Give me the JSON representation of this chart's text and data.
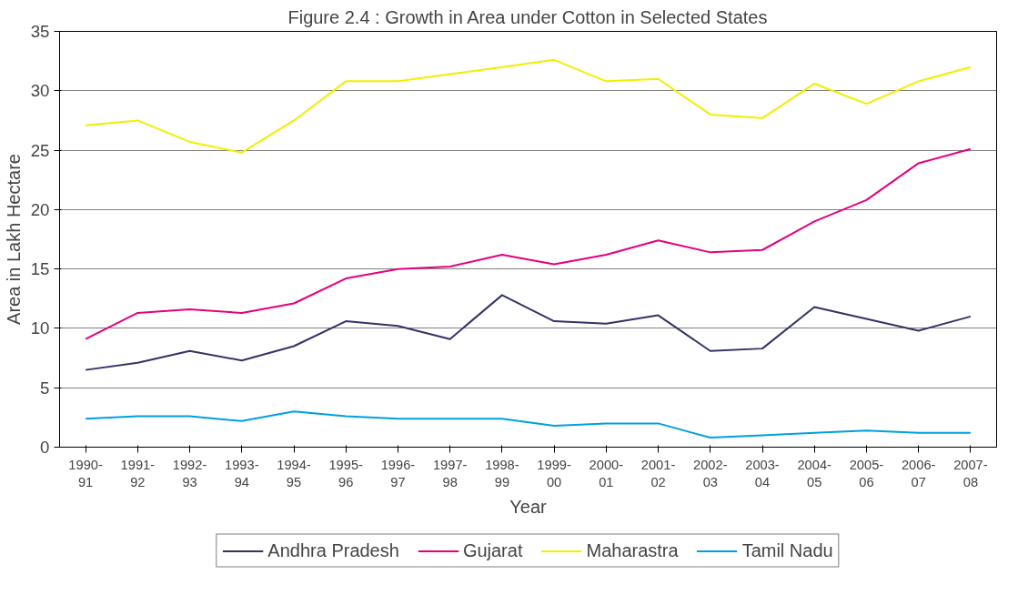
{
  "chart_data": {
    "type": "line",
    "title": "Figure 2.4 : Growth in Area under Cotton in Selected States",
    "xlabel": "Year",
    "ylabel": "Area in Lakh Hectare",
    "categories": [
      "1990-91",
      "1991-92",
      "1992-93",
      "1993-94",
      "1994-95",
      "1995-96",
      "1996-97",
      "1997-98",
      "1998-99",
      "1999-00",
      "2000-01",
      "2001-02",
      "2002-03",
      "2003-04",
      "2004-05",
      "2005-06",
      "2006-07",
      "2007-08"
    ],
    "series": [
      {
        "name": "Andhra Pradesh",
        "color": "#333366",
        "values": [
          6.5,
          7.1,
          8.1,
          7.3,
          8.5,
          10.6,
          10.2,
          9.1,
          12.8,
          10.6,
          10.4,
          11.1,
          8.1,
          8.3,
          11.8,
          10.8,
          9.8,
          11.0
        ]
      },
      {
        "name": "Gujarat",
        "color": "#e6007e",
        "values": [
          9.1,
          11.3,
          11.6,
          11.3,
          12.1,
          14.2,
          15.0,
          15.2,
          16.2,
          15.4,
          16.2,
          17.4,
          16.4,
          16.6,
          19.0,
          20.8,
          23.9,
          25.1
        ]
      },
      {
        "name": "Maharastra",
        "color": "#f0f000",
        "values": [
          27.1,
          27.5,
          25.7,
          24.8,
          27.5,
          30.8,
          30.8,
          31.4,
          32.0,
          32.6,
          30.8,
          31.0,
          28.0,
          27.7,
          30.6,
          28.9,
          30.8,
          32.0
        ]
      },
      {
        "name": "Tamil Nadu",
        "color": "#00a0e0",
        "values": [
          2.4,
          2.6,
          2.6,
          2.2,
          3.0,
          2.6,
          2.4,
          2.4,
          2.4,
          1.8,
          2.0,
          2.0,
          0.8,
          1.0,
          1.2,
          1.4,
          1.2,
          1.2
        ]
      }
    ],
    "ylim": [
      0,
      35
    ],
    "yticks": [
      0,
      5,
      10,
      15,
      20,
      25,
      30,
      35
    ],
    "grid": "y",
    "legend": "bottom",
    "marker": "none",
    "line_style": "solid"
  }
}
